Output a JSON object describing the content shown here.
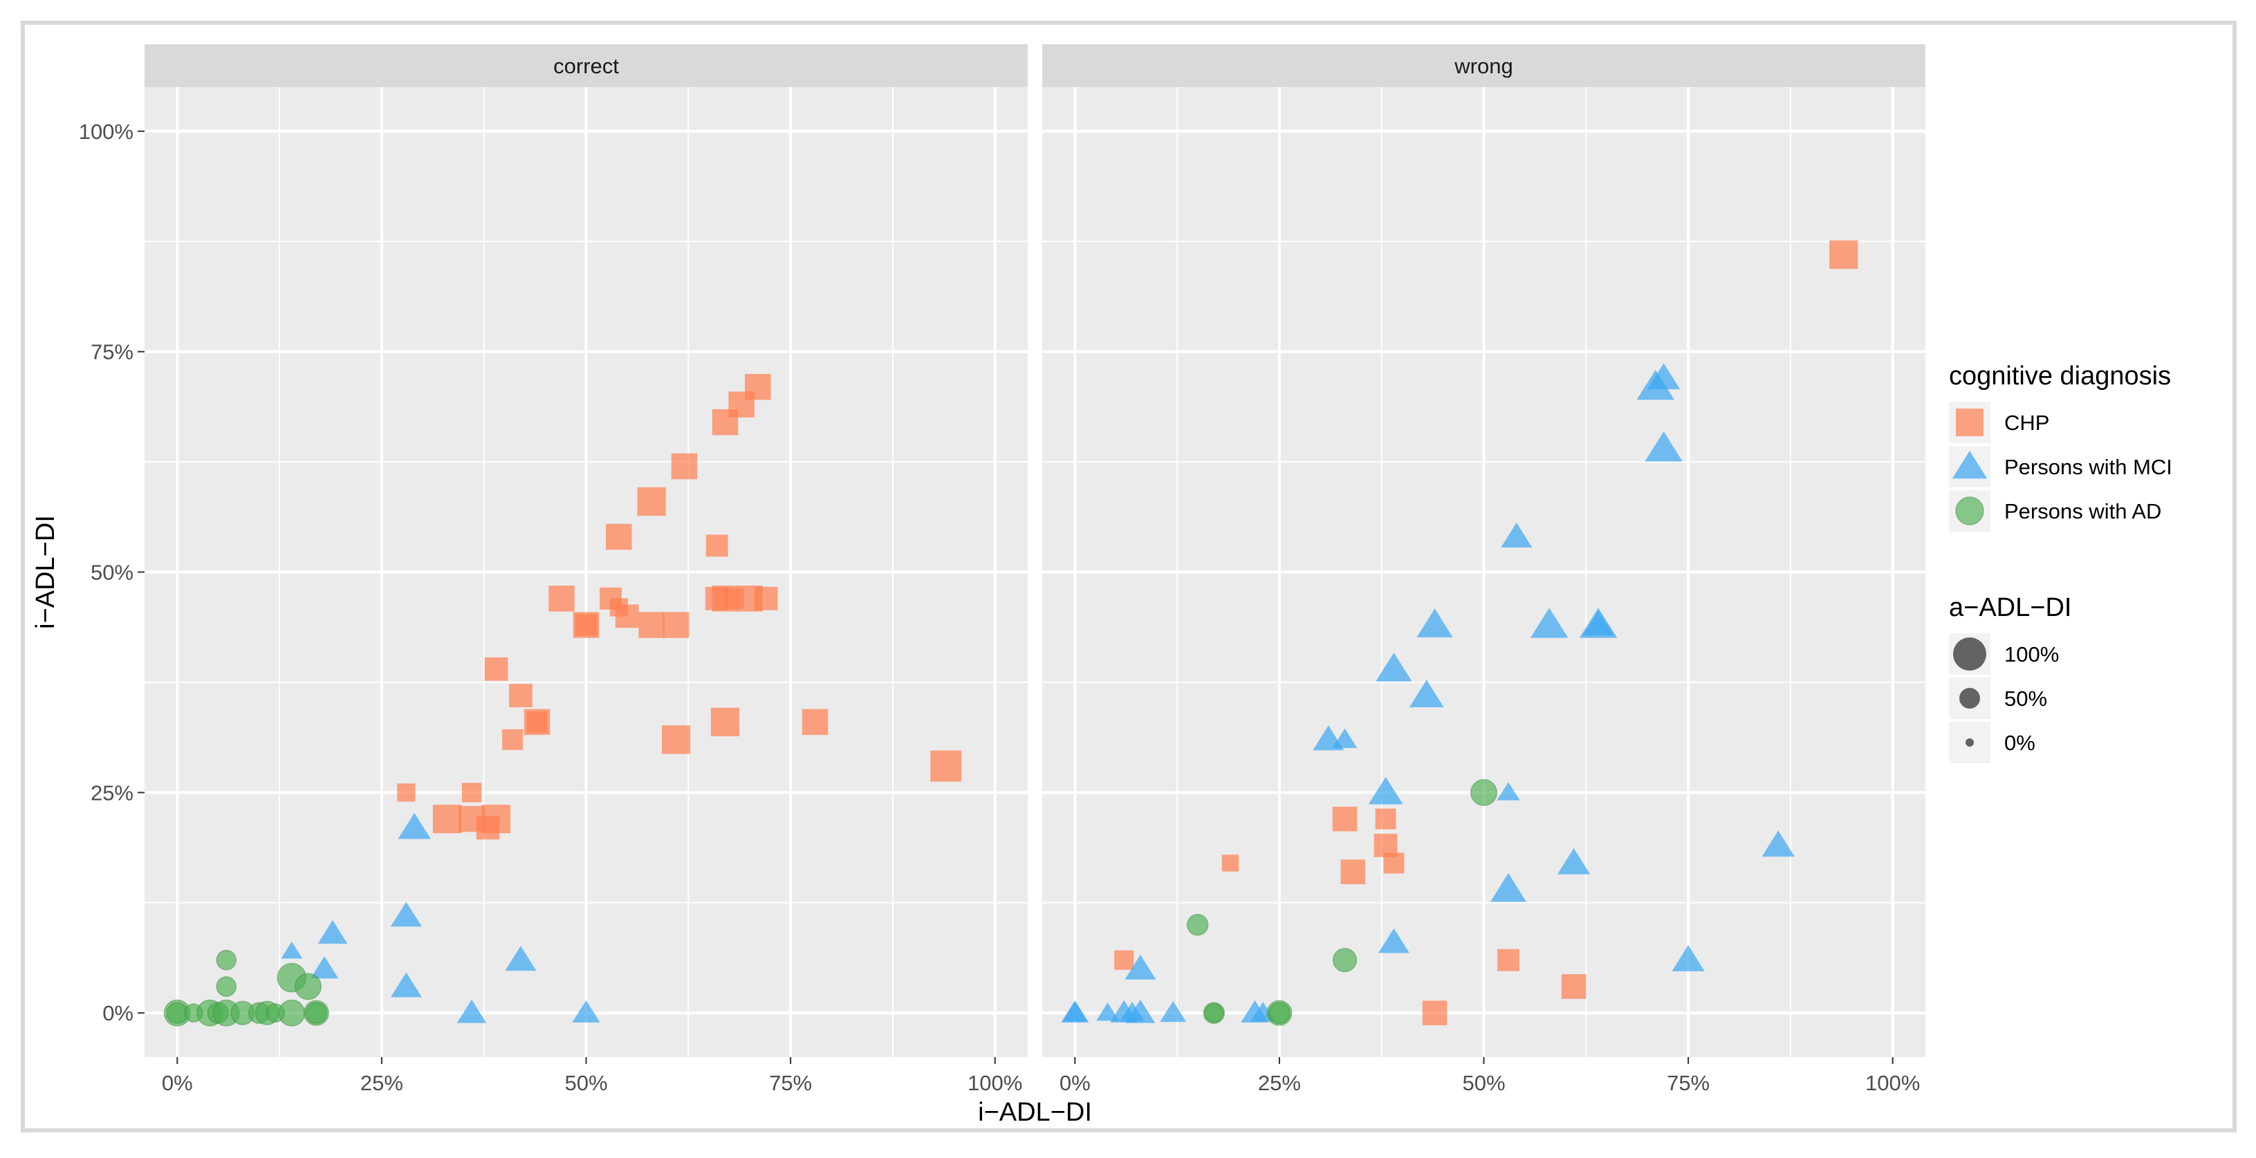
{
  "chart_data": {
    "type": "scatter",
    "xlabel": "i−ADL−DI",
    "ylabel": "i−ADL−DI",
    "xlim": [
      -0.04,
      1.04
    ],
    "ylim": [
      -0.05,
      1.05
    ],
    "x_ticks": [
      0,
      0.25,
      0.5,
      0.75,
      1
    ],
    "x_tick_labels": [
      "0%",
      "25%",
      "50%",
      "75%",
      "100%"
    ],
    "y_ticks": [
      0,
      0.25,
      0.5,
      0.75,
      1
    ],
    "y_tick_labels": [
      "0%",
      "25%",
      "50%",
      "75%",
      "100%"
    ],
    "panels": [
      {
        "title": "correct",
        "series": [
          {
            "name": "CHP",
            "points": [
              {
                "x": 0.28,
                "y": 0.25,
                "size": 0.3
              },
              {
                "x": 0.33,
                "y": 0.22,
                "size": 0.7
              },
              {
                "x": 0.36,
                "y": 0.25,
                "size": 0.35
              },
              {
                "x": 0.36,
                "y": 0.22,
                "size": 0.6
              },
              {
                "x": 0.38,
                "y": 0.21,
                "size": 0.5
              },
              {
                "x": 0.39,
                "y": 0.22,
                "size": 0.7
              },
              {
                "x": 0.39,
                "y": 0.39,
                "size": 0.5
              },
              {
                "x": 0.41,
                "y": 0.31,
                "size": 0.4
              },
              {
                "x": 0.42,
                "y": 0.36,
                "size": 0.5
              },
              {
                "x": 0.44,
                "y": 0.33,
                "size": 0.6
              },
              {
                "x": 0.44,
                "y": 0.33,
                "size": 0.4
              },
              {
                "x": 0.47,
                "y": 0.47,
                "size": 0.6
              },
              {
                "x": 0.5,
                "y": 0.44,
                "size": 0.6
              },
              {
                "x": 0.5,
                "y": 0.44,
                "size": 0.45
              },
              {
                "x": 0.53,
                "y": 0.47,
                "size": 0.45
              },
              {
                "x": 0.54,
                "y": 0.46,
                "size": 0.3
              },
              {
                "x": 0.54,
                "y": 0.54,
                "size": 0.6
              },
              {
                "x": 0.55,
                "y": 0.45,
                "size": 0.5
              },
              {
                "x": 0.58,
                "y": 0.58,
                "size": 0.7
              },
              {
                "x": 0.58,
                "y": 0.44,
                "size": 0.6
              },
              {
                "x": 0.61,
                "y": 0.44,
                "size": 0.6
              },
              {
                "x": 0.61,
                "y": 0.31,
                "size": 0.7
              },
              {
                "x": 0.62,
                "y": 0.62,
                "size": 0.6
              },
              {
                "x": 0.66,
                "y": 0.53,
                "size": 0.45
              },
              {
                "x": 0.66,
                "y": 0.47,
                "size": 0.5
              },
              {
                "x": 0.67,
                "y": 0.47,
                "size": 0.6
              },
              {
                "x": 0.67,
                "y": 0.33,
                "size": 0.7
              },
              {
                "x": 0.67,
                "y": 0.67,
                "size": 0.6
              },
              {
                "x": 0.68,
                "y": 0.47,
                "size": 0.4
              },
              {
                "x": 0.69,
                "y": 0.69,
                "size": 0.6
              },
              {
                "x": 0.7,
                "y": 0.47,
                "size": 0.6
              },
              {
                "x": 0.71,
                "y": 0.71,
                "size": 0.6
              },
              {
                "x": 0.72,
                "y": 0.47,
                "size": 0.5
              },
              {
                "x": 0.78,
                "y": 0.33,
                "size": 0.6
              },
              {
                "x": 0.94,
                "y": 0.28,
                "size": 0.8
              }
            ]
          },
          {
            "name": "Persons with MCI",
            "points": [
              {
                "x": 0.14,
                "y": 0.07,
                "size": 0.25
              },
              {
                "x": 0.18,
                "y": 0.05,
                "size": 0.45
              },
              {
                "x": 0.19,
                "y": 0.09,
                "size": 0.5
              },
              {
                "x": 0.28,
                "y": 0.11,
                "size": 0.55
              },
              {
                "x": 0.28,
                "y": 0.03,
                "size": 0.55
              },
              {
                "x": 0.29,
                "y": 0.21,
                "size": 0.6
              },
              {
                "x": 0.36,
                "y": 0.0,
                "size": 0.5
              },
              {
                "x": 0.42,
                "y": 0.06,
                "size": 0.55
              },
              {
                "x": 0.5,
                "y": 0.0,
                "size": 0.45
              }
            ]
          },
          {
            "name": "Persons with AD",
            "points": [
              {
                "x": 0.0,
                "y": 0.0,
                "size": 0.6
              },
              {
                "x": 0.0,
                "y": 0.0,
                "size": 0.4
              },
              {
                "x": 0.02,
                "y": 0.0,
                "size": 0.3
              },
              {
                "x": 0.04,
                "y": 0.0,
                "size": 0.6
              },
              {
                "x": 0.05,
                "y": 0.0,
                "size": 0.4
              },
              {
                "x": 0.06,
                "y": 0.0,
                "size": 0.6
              },
              {
                "x": 0.06,
                "y": 0.06,
                "size": 0.35
              },
              {
                "x": 0.06,
                "y": 0.03,
                "size": 0.35
              },
              {
                "x": 0.08,
                "y": 0.0,
                "size": 0.5
              },
              {
                "x": 0.1,
                "y": 0.0,
                "size": 0.4
              },
              {
                "x": 0.11,
                "y": 0.0,
                "size": 0.5
              },
              {
                "x": 0.12,
                "y": 0.0,
                "size": 0.3
              },
              {
                "x": 0.14,
                "y": 0.0,
                "size": 0.6
              },
              {
                "x": 0.14,
                "y": 0.04,
                "size": 0.7
              },
              {
                "x": 0.16,
                "y": 0.03,
                "size": 0.6
              },
              {
                "x": 0.17,
                "y": 0.0,
                "size": 0.55
              },
              {
                "x": 0.17,
                "y": 0.0,
                "size": 0.4
              }
            ]
          }
        ]
      },
      {
        "title": "wrong",
        "series": [
          {
            "name": "CHP",
            "points": [
              {
                "x": 0.06,
                "y": 0.06,
                "size": 0.35
              },
              {
                "x": 0.19,
                "y": 0.17,
                "size": 0.25
              },
              {
                "x": 0.33,
                "y": 0.22,
                "size": 0.55
              },
              {
                "x": 0.34,
                "y": 0.16,
                "size": 0.55
              },
              {
                "x": 0.38,
                "y": 0.22,
                "size": 0.4
              },
              {
                "x": 0.38,
                "y": 0.19,
                "size": 0.5
              },
              {
                "x": 0.39,
                "y": 0.17,
                "size": 0.4
              },
              {
                "x": 0.44,
                "y": 0.0,
                "size": 0.55
              },
              {
                "x": 0.53,
                "y": 0.06,
                "size": 0.45
              },
              {
                "x": 0.61,
                "y": 0.03,
                "size": 0.55
              },
              {
                "x": 0.94,
                "y": 0.86,
                "size": 0.7
              }
            ]
          },
          {
            "name": "Persons with MCI",
            "points": [
              {
                "x": 0.0,
                "y": 0.0,
                "size": 0.45
              },
              {
                "x": 0.0,
                "y": 0.0,
                "size": 0.35
              },
              {
                "x": 0.04,
                "y": 0.0,
                "size": 0.3
              },
              {
                "x": 0.06,
                "y": 0.0,
                "size": 0.45
              },
              {
                "x": 0.07,
                "y": 0.0,
                "size": 0.35
              },
              {
                "x": 0.08,
                "y": 0.0,
                "size": 0.5
              },
              {
                "x": 0.08,
                "y": 0.05,
                "size": 0.55
              },
              {
                "x": 0.12,
                "y": 0.0,
                "size": 0.4
              },
              {
                "x": 0.22,
                "y": 0.0,
                "size": 0.45
              },
              {
                "x": 0.23,
                "y": 0.0,
                "size": 0.35
              },
              {
                "x": 0.31,
                "y": 0.31,
                "size": 0.55
              },
              {
                "x": 0.33,
                "y": 0.31,
                "size": 0.35
              },
              {
                "x": 0.38,
                "y": 0.25,
                "size": 0.65
              },
              {
                "x": 0.39,
                "y": 0.39,
                "size": 0.7
              },
              {
                "x": 0.39,
                "y": 0.08,
                "size": 0.55
              },
              {
                "x": 0.43,
                "y": 0.36,
                "size": 0.65
              },
              {
                "x": 0.44,
                "y": 0.44,
                "size": 0.7
              },
              {
                "x": 0.53,
                "y": 0.25,
                "size": 0.3
              },
              {
                "x": 0.53,
                "y": 0.14,
                "size": 0.7
              },
              {
                "x": 0.54,
                "y": 0.54,
                "size": 0.55
              },
              {
                "x": 0.58,
                "y": 0.44,
                "size": 0.75
              },
              {
                "x": 0.61,
                "y": 0.17,
                "size": 0.6
              },
              {
                "x": 0.64,
                "y": 0.44,
                "size": 0.75
              },
              {
                "x": 0.64,
                "y": 0.44,
                "size": 0.55
              },
              {
                "x": 0.71,
                "y": 0.71,
                "size": 0.75
              },
              {
                "x": 0.72,
                "y": 0.72,
                "size": 0.6
              },
              {
                "x": 0.72,
                "y": 0.64,
                "size": 0.75
              },
              {
                "x": 0.75,
                "y": 0.06,
                "size": 0.6
              },
              {
                "x": 0.86,
                "y": 0.19,
                "size": 0.6
              }
            ]
          },
          {
            "name": "Persons with AD",
            "points": [
              {
                "x": 0.15,
                "y": 0.1,
                "size": 0.4
              },
              {
                "x": 0.17,
                "y": 0.0,
                "size": 0.4
              },
              {
                "x": 0.17,
                "y": 0.0,
                "size": 0.3
              },
              {
                "x": 0.25,
                "y": 0.0,
                "size": 0.55
              },
              {
                "x": 0.25,
                "y": 0.0,
                "size": 0.4
              },
              {
                "x": 0.33,
                "y": 0.06,
                "size": 0.5
              },
              {
                "x": 0.5,
                "y": 0.25,
                "size": 0.6
              }
            ]
          }
        ]
      }
    ],
    "legend": {
      "color_title": "cognitive diagnosis",
      "color_items": [
        {
          "label": "CHP",
          "shape": "square",
          "color": "#FF7F50"
        },
        {
          "label": "Persons with MCI",
          "shape": "triangle",
          "color": "#3BA7F2"
        },
        {
          "label": "Persons with AD",
          "shape": "circle",
          "color": "#4CAF50"
        }
      ],
      "size_title": "a−ADL−DI",
      "size_items": [
        {
          "label": "100%",
          "size": 1.0
        },
        {
          "label": "50%",
          "size": 0.5
        },
        {
          "label": "0%",
          "size": 0.0
        }
      ],
      "placement": "right"
    },
    "colors": {
      "panel_bg": "#EBEBEB",
      "strip_bg": "#D9D9D9",
      "grid": "#FFFFFF",
      "CHP": "#FF7F50",
      "Persons with MCI": "#3BA7F2",
      "Persons with AD": "#4CAF50",
      "Persons with AD dark": "#1E8A1E",
      "Persons with MCI dark": "#0B7FE0",
      "CHP dark": "#FF4500"
    }
  }
}
